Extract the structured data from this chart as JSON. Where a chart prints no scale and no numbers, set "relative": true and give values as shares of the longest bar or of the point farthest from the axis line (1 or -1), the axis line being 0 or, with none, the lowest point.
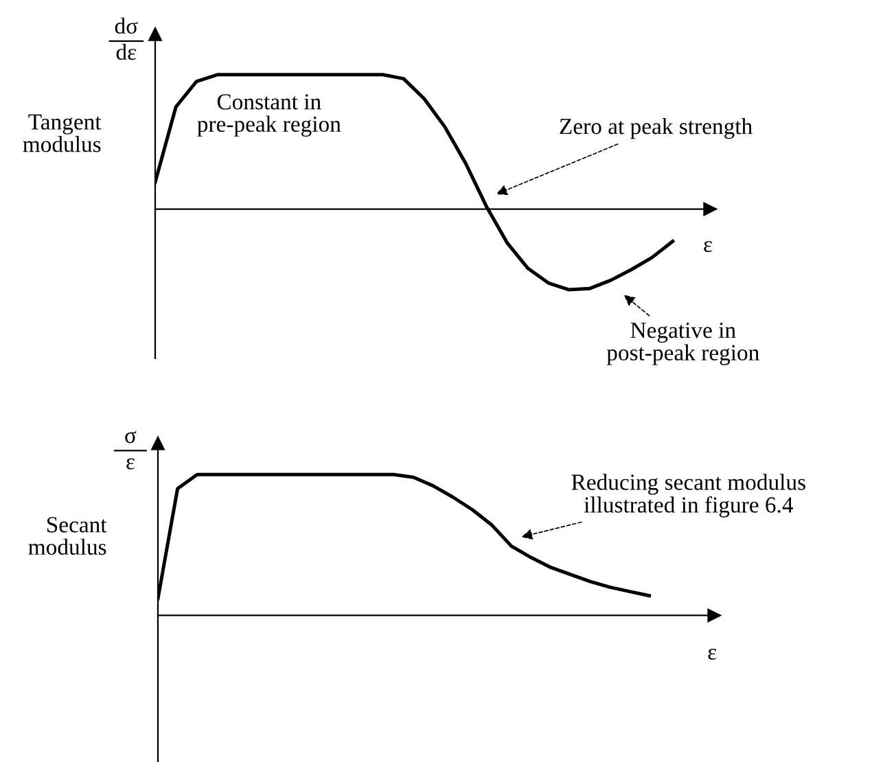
{
  "chart_data": [
    {
      "type": "line",
      "relative": true,
      "ylabel": "Tangent\nmodulus",
      "xlabel": "ε",
      "title": "dσ",
      "subtitle": "dε",
      "legend": false,
      "categories": [
        null,
        null,
        null,
        null,
        null,
        null,
        null,
        null,
        null,
        null,
        null,
        null,
        null,
        null,
        null,
        null,
        null,
        null,
        null,
        null,
        null,
        null,
        null,
        null,
        null,
        null
      ],
      "series": [
        {
          "color": "#000000",
          "values": [
            0.2,
            0.76,
            0.95,
            1,
            1,
            1,
            1,
            1,
            1,
            1,
            1,
            1,
            0.97,
            0.82,
            0.61,
            0.34,
            0.02,
            -0.25,
            -0.44,
            -0.55,
            -0.6,
            -0.59,
            -0.53,
            -0.45,
            -0.36,
            -0.24
          ]
        }
      ],
      "annotations": [
        "Constant in\npre-peak region",
        "Zero at peak strength",
        "Negative in\npost-peak region"
      ]
    },
    {
      "type": "line",
      "relative": true,
      "ylabel": "Secant\nmodulus",
      "xlabel": "ε",
      "title": "σ",
      "subtitle": "ε",
      "legend": false,
      "categories": [
        null,
        null,
        null,
        null,
        null,
        null,
        null,
        null,
        null,
        null,
        null,
        null,
        null,
        null,
        null,
        null,
        null,
        null,
        null,
        null,
        null,
        null,
        null,
        null,
        null,
        null
      ],
      "series": [
        {
          "color": "#000000",
          "values": [
            0.12,
            0.9,
            1,
            1,
            1,
            1,
            1,
            1,
            1,
            1,
            1,
            1,
            1,
            0.98,
            0.92,
            0.84,
            0.75,
            0.64,
            0.49,
            0.41,
            0.34,
            0.29,
            0.24,
            0.2,
            0.17,
            0.14
          ]
        }
      ],
      "annotations": [
        "Reducing secant modulus\nillustrated in figure 6.4"
      ]
    }
  ]
}
